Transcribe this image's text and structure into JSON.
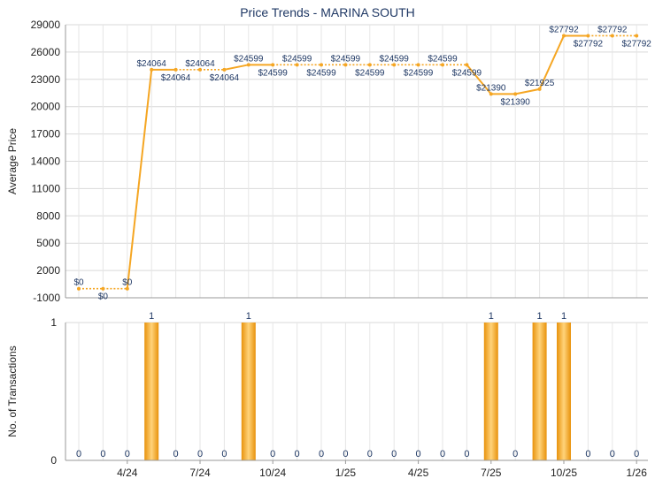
{
  "chart_data": [
    {
      "type": "line",
      "title": "Price Trends - MARINA SOUTH",
      "ylabel": "Average Price",
      "xlabel": "",
      "ylim": [
        -1000,
        29000
      ],
      "yticks": [
        -1000,
        2000,
        5000,
        8000,
        11000,
        14000,
        17000,
        20000,
        23000,
        26000,
        29000
      ],
      "grid": true,
      "series_color": "#f5a623",
      "points": [
        {
          "v": 0,
          "label": "$0",
          "pos": "above"
        },
        {
          "v": 0,
          "label": "$0",
          "pos": "below"
        },
        {
          "v": 0,
          "label": "$0",
          "pos": "above"
        },
        {
          "v": 24064,
          "label": "$24064",
          "pos": "above"
        },
        {
          "v": 24064,
          "label": "$24064",
          "pos": "below"
        },
        {
          "v": 24064,
          "label": "$24064",
          "pos": "above"
        },
        {
          "v": 24064,
          "label": "$24064",
          "pos": "below"
        },
        {
          "v": 24599,
          "label": "$24599",
          "pos": "above"
        },
        {
          "v": 24599,
          "label": "$24599",
          "pos": "below"
        },
        {
          "v": 24599,
          "label": "$24599",
          "pos": "above"
        },
        {
          "v": 24599,
          "label": "$24599",
          "pos": "below"
        },
        {
          "v": 24599,
          "label": "$24599",
          "pos": "above"
        },
        {
          "v": 24599,
          "label": "$24599",
          "pos": "below"
        },
        {
          "v": 24599,
          "label": "$24599",
          "pos": "above"
        },
        {
          "v": 24599,
          "label": "$24599",
          "pos": "below"
        },
        {
          "v": 24599,
          "label": "$24599",
          "pos": "above"
        },
        {
          "v": 24599,
          "label": "$24599",
          "pos": "below"
        },
        {
          "v": 21390,
          "label": "$21390",
          "pos": "above"
        },
        {
          "v": 21390,
          "label": "$21390",
          "pos": "below"
        },
        {
          "v": 21925,
          "label": "$21925",
          "pos": "above"
        },
        {
          "v": 27792,
          "label": "$27792",
          "pos": "above"
        },
        {
          "v": 27792,
          "label": "$27792",
          "pos": "below"
        },
        {
          "v": 27792,
          "label": "$27792",
          "pos": "above"
        },
        {
          "v": 27792,
          "label": "$27792",
          "pos": "below"
        }
      ],
      "solid_segments": [
        2,
        3,
        6,
        7,
        16,
        17,
        18,
        19,
        20
      ]
    },
    {
      "type": "bar",
      "ylabel": "No. of Transactions",
      "ylim": [
        0,
        1
      ],
      "yticks": [
        0,
        1
      ],
      "bar_color": "#f5a623",
      "values": [
        0,
        0,
        0,
        1,
        0,
        0,
        0,
        1,
        0,
        0,
        0,
        0,
        0,
        0,
        0,
        0,
        0,
        1,
        0,
        1,
        1,
        0,
        0,
        0
      ],
      "x_tick_labels": [
        "4/24",
        "7/24",
        "10/24",
        "1/25",
        "4/25",
        "7/25",
        "10/25",
        "1/26"
      ]
    }
  ]
}
